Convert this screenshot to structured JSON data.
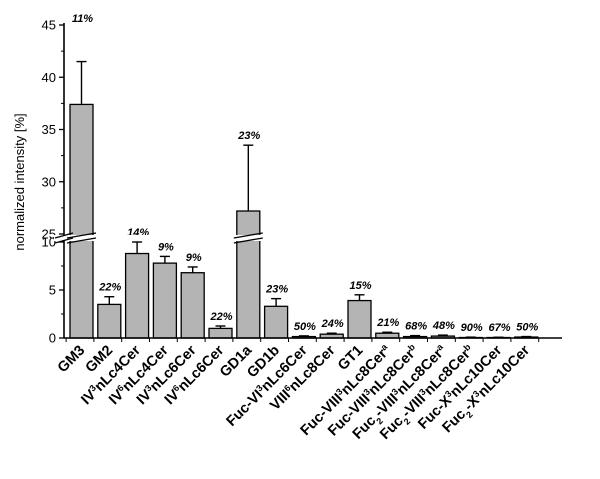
{
  "chart_data": {
    "type": "bar",
    "title": "",
    "xlabel": "",
    "ylabel": "normalized intensity [%]",
    "ylim": [
      0,
      45
    ],
    "axis_break": {
      "lower_range": [
        0,
        10
      ],
      "upper_range": [
        25,
        45
      ]
    },
    "y_ticks_lower": [
      0,
      5,
      10
    ],
    "y_ticks_upper": [
      25,
      30,
      35,
      40,
      45
    ],
    "grid": false,
    "legend": "none",
    "bar_color": "#b4b4b4",
    "edge_color": "#000000",
    "categories": [
      {
        "base": "GM3",
        "sup": "",
        "tail": ""
      },
      {
        "base": "GM2",
        "sup": "",
        "tail": ""
      },
      {
        "base": "IV",
        "sup": "3",
        "tail": "nLc4Cer"
      },
      {
        "base": "IV",
        "sup": "6",
        "tail": "nLc4Cer"
      },
      {
        "base": "IV",
        "sup": "3",
        "tail": "nLc6Cer"
      },
      {
        "base": "IV",
        "sup": "6",
        "tail": "nLc6Cer"
      },
      {
        "base": "GD1a",
        "sup": "",
        "tail": ""
      },
      {
        "base": "GD1b",
        "sup": "",
        "tail": ""
      },
      {
        "base": "Fuc-VI",
        "sup": "3",
        "tail": "nLc6Cer"
      },
      {
        "base": "VIII",
        "sup": "6",
        "tail": "nLc8Cer"
      },
      {
        "base": "GT1",
        "sup": "",
        "tail": ""
      },
      {
        "base": "Fuc-VIII",
        "sup": "3",
        "tail": "nLc8Cer",
        "sup2": "a"
      },
      {
        "base": "Fuc-VIII",
        "sup": "3",
        "tail": "nLc8Cer",
        "sup2": "b"
      },
      {
        "base": "Fuc",
        "sub": "2",
        "mid": "-VIII",
        "sup": "3",
        "tail": "nLc8Cer",
        "sup2": "a"
      },
      {
        "base": "Fuc",
        "sub": "2",
        "mid": "-VIII",
        "sup": "3",
        "tail": "nLc8Cer",
        "sup2": "b"
      },
      {
        "base": "Fuc-X",
        "sup": "3",
        "tail": "nLc10Cer"
      },
      {
        "base": "Fuc",
        "sub": "2",
        "mid": "-X",
        "sup": "3",
        "tail": "nLc10Cer"
      }
    ],
    "values": [
      37.4,
      3.5,
      8.8,
      7.8,
      6.8,
      1.0,
      27.2,
      3.3,
      0.15,
      0.4,
      3.9,
      0.5,
      0.15,
      0.2,
      0.05,
      0.05,
      0.1
    ],
    "errors": [
      4.1,
      0.8,
      1.2,
      0.7,
      0.6,
      0.25,
      6.3,
      0.8,
      0.07,
      0.1,
      0.6,
      0.1,
      0.1,
      0.1,
      0.04,
      0.03,
      0.05
    ],
    "cv_labels": [
      "11%",
      "22%",
      "14%",
      "9%",
      "9%",
      "22%",
      "23%",
      "23%",
      "50%",
      "24%",
      "15%",
      "21%",
      "68%",
      "48%",
      "90%",
      "67%",
      "50%"
    ]
  }
}
